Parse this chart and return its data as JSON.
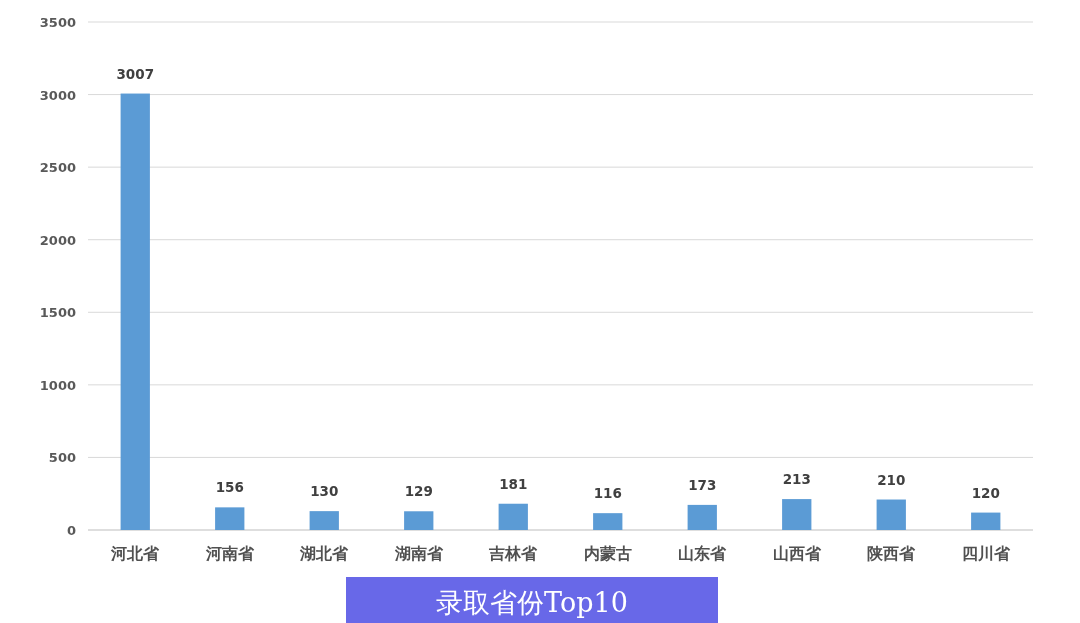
{
  "chart_data": {
    "type": "bar",
    "title": "录取省份Top10",
    "categories": [
      "河北省",
      "河南省",
      "湖北省",
      "湖南省",
      "吉林省",
      "内蒙古",
      "山东省",
      "山西省",
      "陕西省",
      "四川省"
    ],
    "values": [
      3007,
      156,
      130,
      129,
      181,
      116,
      173,
      213,
      210,
      120
    ],
    "color": "#5b9bd5",
    "ylim": [
      0,
      3500
    ],
    "yticks": [
      0,
      500,
      1000,
      1500,
      2000,
      2500,
      3000,
      3500
    ],
    "grid": "y",
    "data_labels": true
  }
}
